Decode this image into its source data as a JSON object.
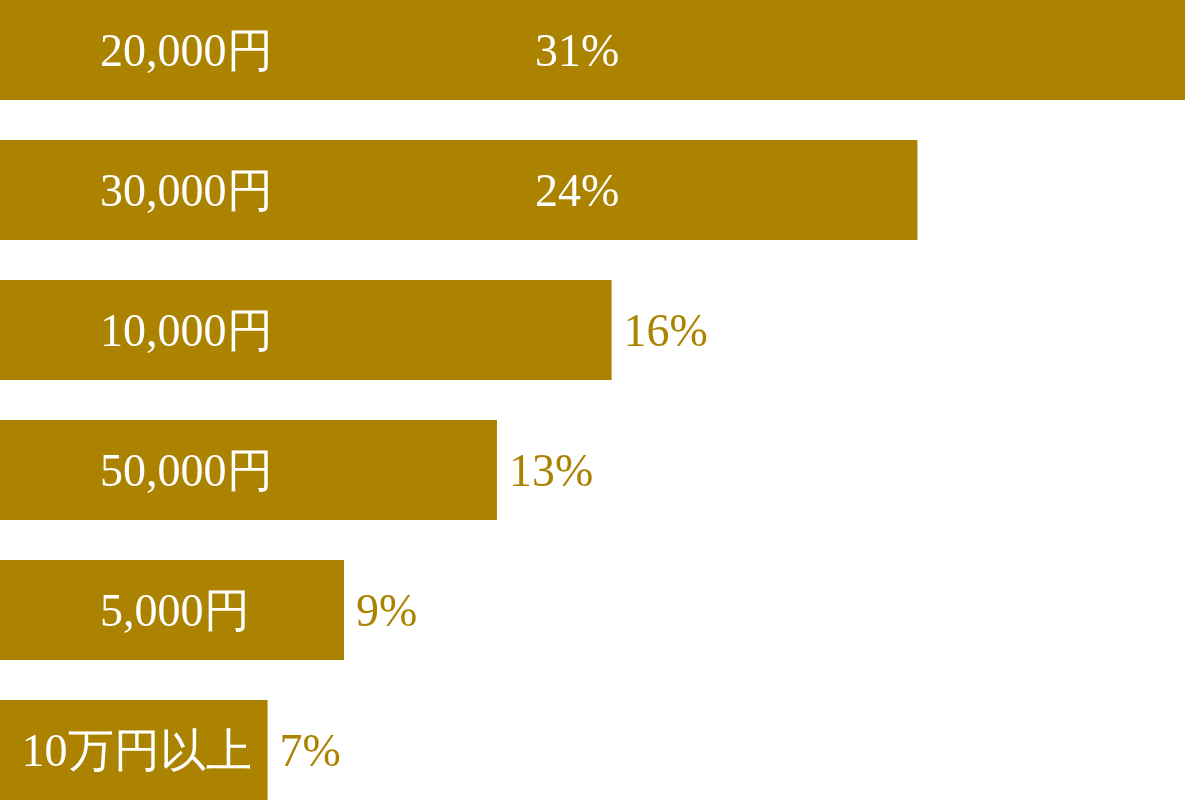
{
  "chart_data": {
    "type": "bar",
    "orientation": "horizontal",
    "categories": [
      "20,000円",
      "30,000円",
      "10,000円",
      "50,000円",
      "5,000円",
      "10万円以上"
    ],
    "values": [
      31,
      24,
      16,
      13,
      9,
      7
    ],
    "value_labels": [
      "31%",
      "24%",
      "16%",
      "13%",
      "9%",
      "7%"
    ],
    "color": "#ab8300",
    "grid": false
  }
}
